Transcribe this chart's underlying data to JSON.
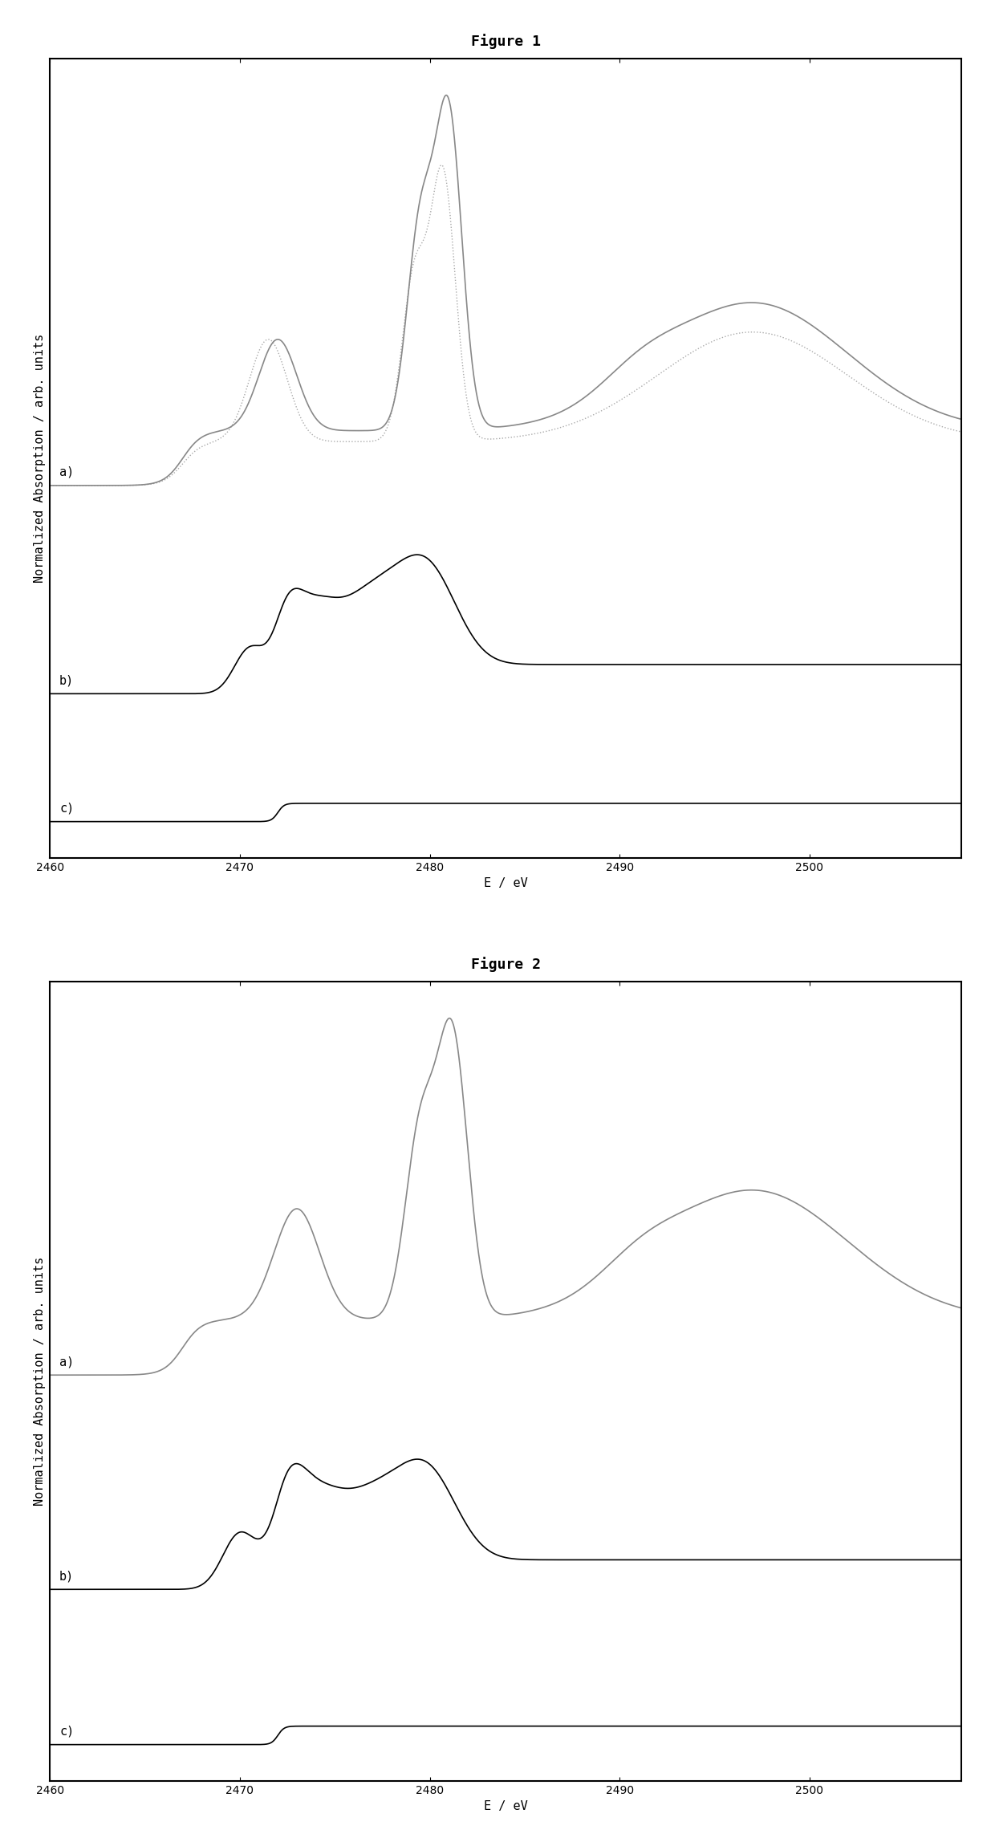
{
  "fig1_title": "Figure 1",
  "fig2_title": "Figure 2",
  "ylabel": "Normalized Absorption / arb. units",
  "xlabel": "E / eV",
  "xlim": [
    2460,
    2508
  ],
  "fig1": {
    "curve_a": {
      "color": "#888888",
      "linestyle": "solid",
      "label": "a)"
    },
    "curve_b": {
      "color": "#000000",
      "linestyle": "solid",
      "label": "b)"
    },
    "curve_c": {
      "color": "#000000",
      "linestyle": "solid",
      "label": "c)"
    },
    "dotted_curve": {
      "color": "#aaaaaa",
      "linestyle": "dotted"
    }
  },
  "fig2": {
    "curve_a": {
      "color": "#888888",
      "linestyle": "solid",
      "label": "a)"
    },
    "curve_b": {
      "color": "#000000",
      "linestyle": "solid",
      "label": "b)"
    },
    "curve_c": {
      "color": "#000000",
      "linestyle": "solid",
      "label": "c)"
    }
  },
  "background_color": "#ffffff",
  "title_fontsize": 13,
  "label_fontsize": 11,
  "tick_fontsize": 10
}
